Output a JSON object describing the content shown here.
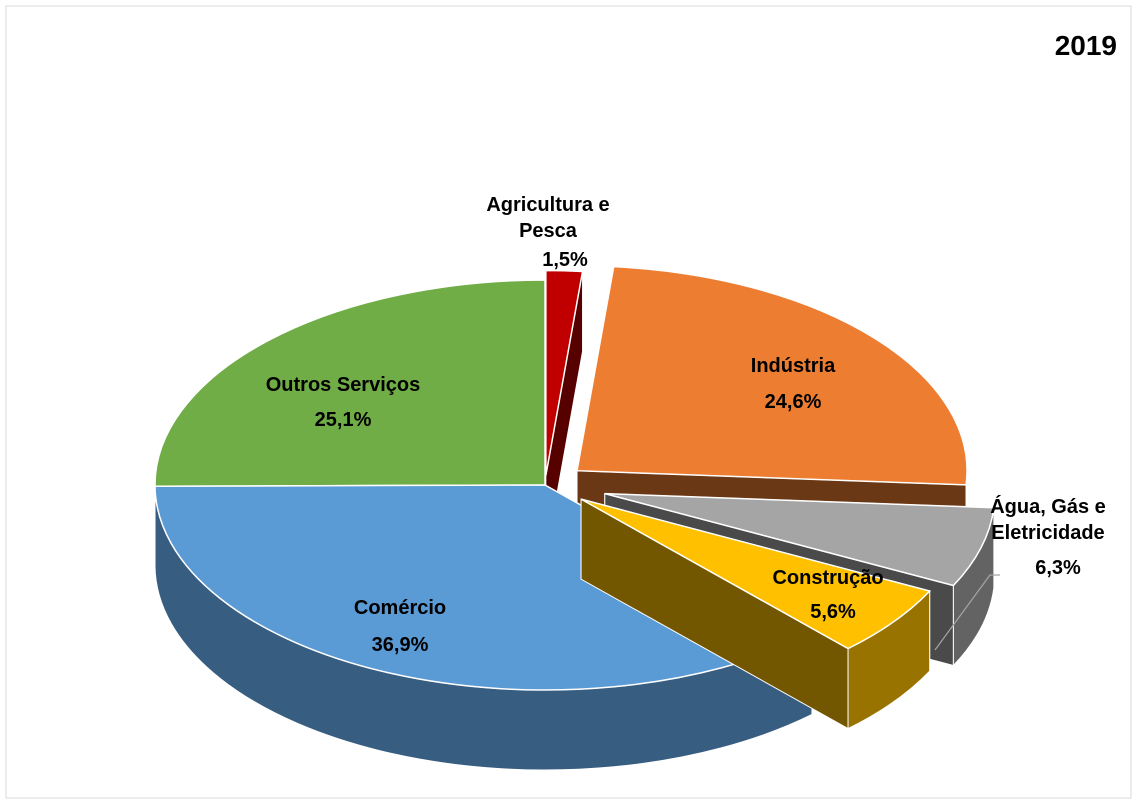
{
  "chart_data": {
    "type": "pie3d",
    "title": "2019",
    "categories": [
      "Agricultura e Pesca",
      "Indústria",
      "Água, Gás e Eletricidade",
      "Construção",
      "Comércio",
      "Outros Serviços"
    ],
    "values": [
      1.5,
      24.6,
      6.3,
      5.6,
      36.9,
      25.1
    ],
    "value_labels": [
      "1,5%",
      "24,6%",
      "6,3%",
      "5,6%",
      "36,9%",
      "25,1%"
    ],
    "colors": [
      "#c00000",
      "#ed7d31",
      "#a5a5a5",
      "#ffc000",
      "#5b9bd5",
      "#70ad47"
    ]
  }
}
